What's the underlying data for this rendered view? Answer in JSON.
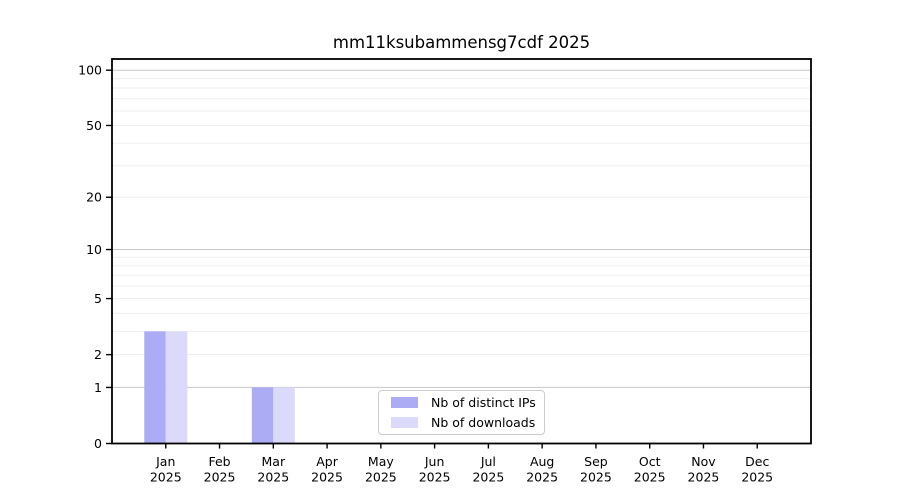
{
  "chart_data": {
    "type": "bar",
    "title": "mm11ksubammensg7cdf 2025",
    "categories": [
      "Jan",
      "Feb",
      "Mar",
      "Apr",
      "May",
      "Jun",
      "Jul",
      "Aug",
      "Sep",
      "Oct",
      "Nov",
      "Dec"
    ],
    "year_label": "2025",
    "series": [
      {
        "name": "Nb of distinct IPs",
        "color": "#acacf4",
        "values": [
          3,
          0,
          1,
          0,
          0,
          0,
          0,
          0,
          0,
          0,
          0,
          0
        ]
      },
      {
        "name": "Nb of downloads",
        "color": "#dbdafa",
        "values": [
          3,
          0,
          1,
          0,
          0,
          0,
          0,
          0,
          0,
          0,
          0,
          0
        ]
      }
    ],
    "yscale": "log1p",
    "ylim": [
      0,
      115
    ],
    "y_tick_labels": [
      100,
      50,
      20,
      10,
      5,
      2,
      1,
      0
    ],
    "y_decade_gridlines": [
      1,
      10,
      100
    ],
    "y_minor_gridlines": [
      2,
      3,
      4,
      5,
      6,
      7,
      8,
      9,
      20,
      30,
      40,
      50,
      60,
      70,
      80,
      90
    ],
    "grid": "both",
    "legend_position": "lower-center-inside",
    "colors": {
      "axis": "#000000",
      "text": "#000000",
      "background": "#ffffff",
      "major_grid": "#c8c8c8",
      "minor_grid": "#efefef",
      "legend_border": "#cccccc"
    }
  }
}
